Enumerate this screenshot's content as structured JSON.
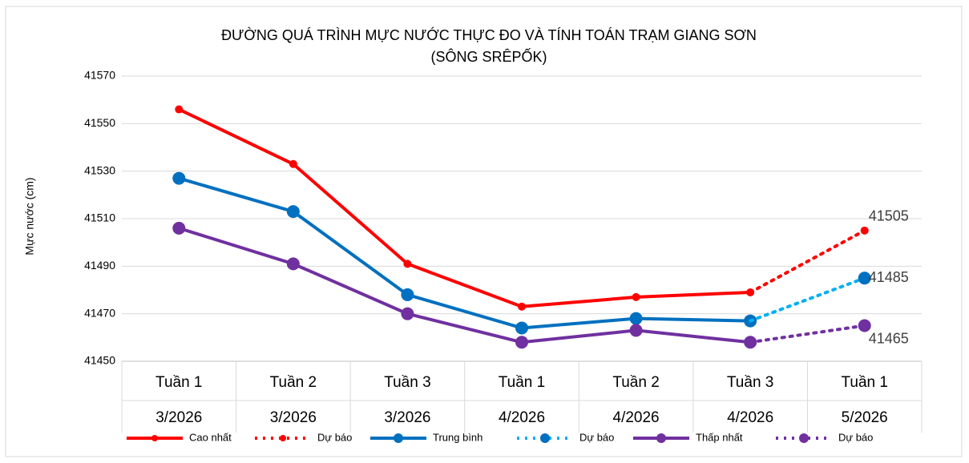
{
  "chart_data": {
    "type": "line",
    "title": "ĐƯỜNG QUÁ TRÌNH MỰC NƯỚC THỰC ĐO VÀ TÍNH TOÁN TRẠM GIANG SƠN",
    "subtitle": "(SÔNG SRÊPỐK)",
    "y_label": "Mực nước (cm)",
    "categories": [
      "Tuần 1",
      "Tuần 2",
      "Tuần 3",
      "Tuần 1",
      "Tuần 2",
      "Tuần 3",
      "Tuần 1"
    ],
    "category_months": [
      "3/2026",
      "3/2026",
      "3/2026",
      "4/2026",
      "4/2026",
      "4/2026",
      "5/2026"
    ],
    "ylim": [
      41450,
      41570
    ],
    "yticks": [
      41450,
      41470,
      41490,
      41510,
      41530,
      41550,
      41570
    ],
    "grid": true,
    "series": [
      {
        "name": "Cao nhất",
        "color": "#ff0000",
        "style": "solid",
        "marker": "small",
        "values": [
          41556,
          41533,
          41491,
          41473,
          41477,
          41479,
          null
        ]
      },
      {
        "name": "Dự báo",
        "color": "#ff0000",
        "style": "dotted",
        "marker": "small",
        "last_label": true,
        "values": [
          null,
          null,
          null,
          null,
          null,
          41479,
          41505
        ]
      },
      {
        "name": "Trung bình",
        "color": "#0070c0",
        "style": "solid",
        "marker": "large",
        "values": [
          41527,
          41513,
          41478,
          41464,
          41468,
          41467,
          null
        ]
      },
      {
        "name": "Dự báo",
        "color": "#00b0f0",
        "style": "dotted",
        "marker": "large",
        "marker_color": "#0070c0",
        "last_label": true,
        "values": [
          null,
          null,
          null,
          null,
          null,
          41467,
          41485
        ]
      },
      {
        "name": "Thấp nhất",
        "color": "#7030a0",
        "style": "solid",
        "marker": "large",
        "values": [
          41506,
          41491,
          41470,
          41458,
          41463,
          41458,
          null
        ]
      },
      {
        "name": "Dự báo",
        "color": "#7030a0",
        "style": "dotted",
        "marker": "large",
        "last_label": true,
        "values": [
          null,
          null,
          null,
          null,
          null,
          41458,
          41465
        ]
      }
    ]
  }
}
